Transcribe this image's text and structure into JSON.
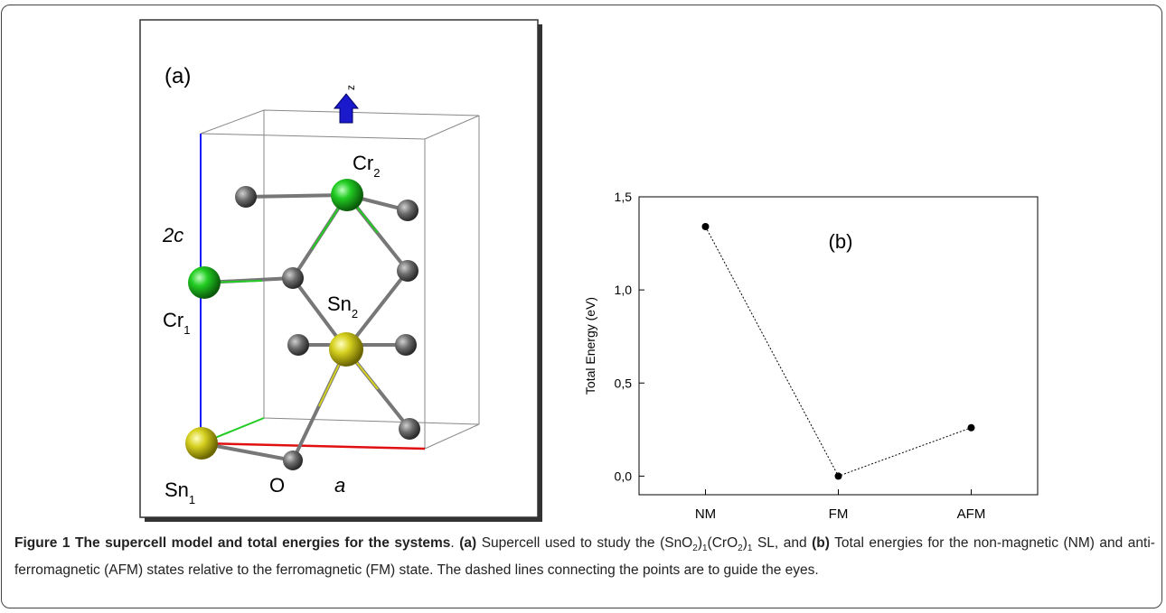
{
  "panel_a": {
    "label": "(a)",
    "axis_z": "z",
    "axis_c": "2c",
    "axis_a": "a",
    "oxygen": "O",
    "atoms": [
      {
        "symbol": "Cr",
        "index": "2"
      },
      {
        "symbol": "Cr",
        "index": "1"
      },
      {
        "symbol": "Sn",
        "index": "2"
      },
      {
        "symbol": "Sn",
        "index": "1"
      }
    ]
  },
  "chart_data": {
    "type": "line",
    "annotation": "(b)",
    "y_label": "Total Energy (eV)",
    "categories": [
      "NM",
      "FM",
      "AFM"
    ],
    "values": [
      1.34,
      0.0,
      0.26
    ],
    "color": "#000000",
    "ylim": [
      -0.1,
      1.5
    ],
    "yticks": [
      {
        "value": 0,
        "label": "0,0"
      },
      {
        "value": 0.5,
        "label": "0,5"
      },
      {
        "value": 1,
        "label": "1,0"
      },
      {
        "value": 1.5,
        "label": "1,5"
      }
    ],
    "line_style": "dotted"
  },
  "caption": {
    "runs": [
      "Figure 1 The supercell model and total energies for the systems",
      ". ",
      "(a)",
      " Supercell used to study the (SnO",
      "2",
      ")",
      "1",
      "(CrO",
      "2",
      ")",
      "1",
      " SL, and ",
      "(b)",
      " Total energies for the non-magnetic (NM) and anti-ferromagnetic (AFM) states relative to the ferromagnetic (FM) state. The dashed lines connecting the points are to guide the eyes."
    ]
  }
}
